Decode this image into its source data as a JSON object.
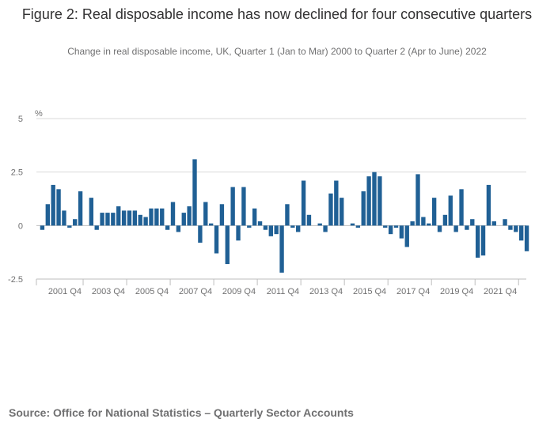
{
  "title": "Figure 2: Real disposable income has now declined for four consecutive quarters",
  "subtitle": "Change in real disposable income, UK, Quarter 1 (Jan to Mar) 2000 to Quarter 2 (Apr to June) 2022",
  "source": "Source: Office for National Statistics – Quarterly Sector Accounts",
  "colors": {
    "bar": "#206095",
    "grid": "#d9d9d9",
    "zero": "#bebebe",
    "text": "#707071"
  },
  "chart_data": {
    "type": "bar",
    "title": "Figure 2: Real disposable income has now declined for four consecutive quarters",
    "ylabel": "%",
    "xlabel": "",
    "ylim": [
      -2.5,
      5
    ],
    "yticks": [
      -2.5,
      0,
      2.5,
      5
    ],
    "ytick_labels": [
      "-2.5",
      "0",
      "2.5",
      "5"
    ],
    "grid": true,
    "xtick_labels": [
      "2001 Q4",
      "2003 Q4",
      "2005 Q4",
      "2007 Q4",
      "2009 Q4",
      "2011 Q4",
      "2013 Q4",
      "2015 Q4",
      "2017 Q4",
      "2019 Q4",
      "2021 Q4"
    ],
    "xtick_indices": [
      7,
      15,
      23,
      31,
      39,
      47,
      55,
      63,
      71,
      79,
      87
    ],
    "categories": [
      "2000 Q1",
      "2000 Q2",
      "2000 Q3",
      "2000 Q4",
      "2001 Q1",
      "2001 Q2",
      "2001 Q3",
      "2001 Q4",
      "2002 Q1",
      "2002 Q2",
      "2002 Q3",
      "2002 Q4",
      "2003 Q1",
      "2003 Q2",
      "2003 Q3",
      "2003 Q4",
      "2004 Q1",
      "2004 Q2",
      "2004 Q3",
      "2004 Q4",
      "2005 Q1",
      "2005 Q2",
      "2005 Q3",
      "2005 Q4",
      "2006 Q1",
      "2006 Q2",
      "2006 Q3",
      "2006 Q4",
      "2007 Q1",
      "2007 Q2",
      "2007 Q3",
      "2007 Q4",
      "2008 Q1",
      "2008 Q2",
      "2008 Q3",
      "2008 Q4",
      "2009 Q1",
      "2009 Q2",
      "2009 Q3",
      "2009 Q4",
      "2010 Q1",
      "2010 Q2",
      "2010 Q3",
      "2010 Q4",
      "2011 Q1",
      "2011 Q2",
      "2011 Q3",
      "2011 Q4",
      "2012 Q1",
      "2012 Q2",
      "2012 Q3",
      "2012 Q4",
      "2013 Q1",
      "2013 Q2",
      "2013 Q3",
      "2013 Q4",
      "2014 Q1",
      "2014 Q2",
      "2014 Q3",
      "2014 Q4",
      "2015 Q1",
      "2015 Q2",
      "2015 Q3",
      "2015 Q4",
      "2016 Q1",
      "2016 Q2",
      "2016 Q3",
      "2016 Q4",
      "2017 Q1",
      "2017 Q2",
      "2017 Q3",
      "2017 Q4",
      "2018 Q1",
      "2018 Q2",
      "2018 Q3",
      "2018 Q4",
      "2019 Q1",
      "2019 Q2",
      "2019 Q3",
      "2019 Q4",
      "2020 Q1",
      "2020 Q2",
      "2020 Q3",
      "2020 Q4",
      "2021 Q1",
      "2021 Q2",
      "2021 Q3",
      "2021 Q4",
      "2022 Q1",
      "2022 Q2"
    ],
    "values": [
      -0.2,
      1.0,
      1.9,
      1.7,
      0.7,
      -0.1,
      0.3,
      1.6,
      0.0,
      1.3,
      -0.2,
      0.6,
      0.6,
      0.6,
      0.9,
      0.7,
      0.7,
      0.7,
      0.5,
      0.4,
      0.8,
      0.8,
      0.8,
      -0.2,
      1.1,
      -0.3,
      0.6,
      0.9,
      3.1,
      -0.8,
      1.1,
      0.1,
      -1.3,
      1.0,
      -1.8,
      1.8,
      -0.7,
      1.8,
      -0.1,
      0.8,
      0.2,
      -0.2,
      -0.5,
      -0.4,
      -2.2,
      1.0,
      -0.1,
      -0.3,
      2.1,
      0.5,
      0.0,
      0.1,
      -0.3,
      1.5,
      2.1,
      1.3,
      0.0,
      0.1,
      -0.1,
      1.6,
      2.3,
      2.5,
      2.3,
      -0.1,
      -0.4,
      -0.1,
      -0.6,
      -1.0,
      0.2,
      2.4,
      0.4,
      0.1,
      1.3,
      -0.3,
      0.5,
      1.4,
      -0.3,
      1.7,
      -0.2,
      0.3,
      -1.5,
      -1.4,
      1.9,
      0.2,
      0.0,
      0.3,
      -0.2,
      -0.3,
      -0.7,
      -1.2
    ]
  }
}
